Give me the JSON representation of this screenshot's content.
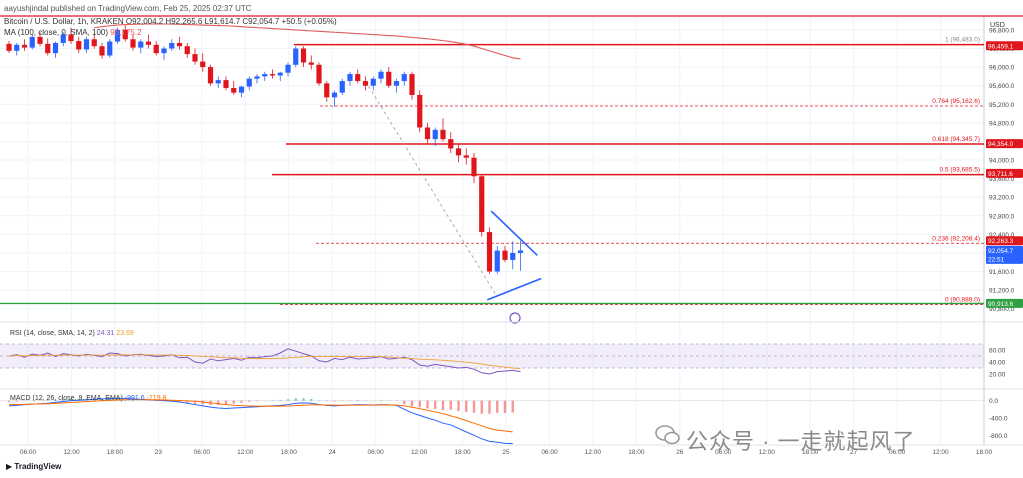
{
  "header": {
    "title": "aayushjindal published on TradingView.com, Feb 25, 2025 02:37 UTC",
    "symbol_line": "Bitcoin / U.S. Dollar, 1h, KRAKEN",
    "ohlc": "O92,004.2 H92,265.6 L91,614.7 C92,054.7 +50.5 (+0.05%)",
    "ma_label": "MA (100, close, 0, SMA, 100)",
    "ma_value": "96,175.2",
    "currency": "USD"
  },
  "rsi_label": {
    "text": "RSI (14, close, SMA, 14, 2)",
    "v1": "24.31",
    "v2": "23.69"
  },
  "macd_label": {
    "text": "MACD (12, 26, close, 9, EMA, EMA)",
    "v1": "-991.6",
    "v2": "-719.8"
  },
  "brand": "TradingView",
  "watermark": "公众号 · 一走就起风了",
  "colors": {
    "up": "#2962ff",
    "down": "#e0161d",
    "ma": "#e05a5a",
    "rsi": "#7e57c2",
    "fib": "#e0161d",
    "support": "#2ea043"
  },
  "chart_data": {
    "type": "candlestick",
    "ylim": [
      90600,
      97100
    ],
    "price_ticks": [
      "96,800.0",
      "96,400.0",
      "96,000.0",
      "95,600.0",
      "95,200.0",
      "94,800.0",
      "94,400.0",
      "94,000.0",
      "93,600.0",
      "93,200.0",
      "92,800.0",
      "92,400.0",
      "92,000.0",
      "91,600.0",
      "91,200.0",
      "90,800.0"
    ],
    "price_badges": [
      {
        "label": "96,459.1",
        "value": 96459.1,
        "color": "#e0161d"
      },
      {
        "label": "94,354.0",
        "value": 94354.0,
        "color": "#e0161d"
      },
      {
        "label": "93,711.6",
        "value": 93711.6,
        "color": "#e0161d"
      },
      {
        "label": "92,263.3",
        "value": 92263.3,
        "color": "#e0161d"
      },
      {
        "label": "92,054.7",
        "value": 92054.7,
        "color": "#2962ff",
        "sub": "22:51"
      },
      {
        "label": "90,913.6",
        "value": 90913.6,
        "color": "#2ea043"
      }
    ],
    "fib_levels": [
      {
        "label": "1 (96,483.0)",
        "value": 96483.0
      },
      {
        "label": "0.764 (95,162.6)",
        "value": 95162.6
      },
      {
        "label": "0.618 (94,345.7)",
        "value": 94345.7
      },
      {
        "label": "0.5 (93,685.5)",
        "value": 93685.5
      },
      {
        "label": "0.236 (92,208.4)",
        "value": 92208.4
      },
      {
        "label": "0 (90,888.0)",
        "value": 90888.0
      }
    ],
    "x_ticks": [
      "06:00",
      "12:00",
      "18:00",
      "23",
      "06:00",
      "12:00",
      "18:00",
      "24",
      "06:00",
      "12:00",
      "18:00",
      "25",
      "06:00",
      "12:00",
      "18:00",
      "26",
      "06:00",
      "12:00",
      "18:00",
      "27",
      "06:00",
      "12:00",
      "18:00"
    ],
    "candles": [
      [
        96500,
        96560,
        96300,
        96350
      ],
      [
        96350,
        96520,
        96250,
        96480
      ],
      [
        96480,
        96600,
        96350,
        96420
      ],
      [
        96420,
        96700,
        96380,
        96650
      ],
      [
        96650,
        96750,
        96450,
        96500
      ],
      [
        96500,
        96620,
        96250,
        96300
      ],
      [
        96300,
        96550,
        96200,
        96520
      ],
      [
        96520,
        96750,
        96450,
        96700
      ],
      [
        96700,
        96850,
        96500,
        96560
      ],
      [
        96560,
        96650,
        96300,
        96380
      ],
      [
        96380,
        96650,
        96300,
        96600
      ],
      [
        96600,
        96700,
        96400,
        96450
      ],
      [
        96450,
        96520,
        96180,
        96250
      ],
      [
        96250,
        96600,
        96200,
        96550
      ],
      [
        96550,
        96850,
        96500,
        96800
      ],
      [
        96800,
        96900,
        96550,
        96600
      ],
      [
        96600,
        96700,
        96350,
        96420
      ],
      [
        96420,
        96600,
        96300,
        96550
      ],
      [
        96550,
        96700,
        96400,
        96480
      ],
      [
        96480,
        96560,
        96250,
        96300
      ],
      [
        96300,
        96450,
        96150,
        96400
      ],
      [
        96400,
        96600,
        96350,
        96520
      ],
      [
        96520,
        96650,
        96380,
        96450
      ],
      [
        96450,
        96520,
        96200,
        96280
      ],
      [
        96280,
        96400,
        96050,
        96120
      ],
      [
        96120,
        96300,
        95900,
        96000
      ],
      [
        96000,
        96050,
        95600,
        95650
      ],
      [
        95650,
        95800,
        95550,
        95720
      ],
      [
        95720,
        95800,
        95500,
        95550
      ],
      [
        95550,
        95700,
        95400,
        95450
      ],
      [
        95450,
        95600,
        95350,
        95580
      ],
      [
        95580,
        95800,
        95500,
        95750
      ],
      [
        95750,
        95850,
        95650,
        95800
      ],
      [
        95800,
        95900,
        95700,
        95850
      ],
      [
        95850,
        95950,
        95750,
        95820
      ],
      [
        95820,
        95900,
        95700,
        95880
      ],
      [
        95880,
        96100,
        95800,
        96050
      ],
      [
        96050,
        96450,
        96000,
        96400
      ],
      [
        96400,
        96450,
        96000,
        96100
      ],
      [
        96100,
        96250,
        95950,
        96050
      ],
      [
        96050,
        96100,
        95600,
        95650
      ],
      [
        95650,
        95700,
        95250,
        95350
      ],
      [
        95350,
        95500,
        95150,
        95450
      ],
      [
        95450,
        95750,
        95400,
        95700
      ],
      [
        95700,
        95900,
        95600,
        95850
      ],
      [
        95850,
        95950,
        95650,
        95700
      ],
      [
        95700,
        95800,
        95500,
        95600
      ],
      [
        95600,
        95800,
        95500,
        95750
      ],
      [
        95750,
        95950,
        95650,
        95900
      ],
      [
        95900,
        96000,
        95550,
        95600
      ],
      [
        95600,
        95750,
        95450,
        95700
      ],
      [
        95700,
        95900,
        95600,
        95850
      ],
      [
        95850,
        95900,
        95300,
        95400
      ],
      [
        95400,
        95500,
        94600,
        94700
      ],
      [
        94700,
        94800,
        94350,
        94450
      ],
      [
        94450,
        94700,
        94300,
        94650
      ],
      [
        94650,
        94900,
        94400,
        94450
      ],
      [
        94450,
        94600,
        94150,
        94250
      ],
      [
        94250,
        94350,
        93950,
        94100
      ],
      [
        94100,
        94250,
        93900,
        94050
      ],
      [
        94050,
        94150,
        93500,
        93650
      ],
      [
        93650,
        93700,
        92350,
        92450
      ],
      [
        92450,
        92550,
        91550,
        91600
      ],
      [
        91600,
        92150,
        91550,
        92050
      ],
      [
        92050,
        92150,
        91800,
        91850
      ],
      [
        91850,
        92250,
        91650,
        92000
      ],
      [
        92000,
        92265,
        91614,
        92054
      ]
    ],
    "ma100": [
      96850,
      96870,
      96890,
      96905,
      96915,
      96920,
      96925,
      96928,
      96930,
      96928,
      96925,
      96920,
      96915,
      96910,
      96905,
      96900,
      96895,
      96890,
      96880,
      96870,
      96860,
      96850,
      96840,
      96830,
      96820,
      96810,
      96800,
      96790,
      96780,
      96770,
      96760,
      96750,
      96740,
      96730,
      96720,
      96710,
      96700,
      96690,
      96680,
      96670,
      96655,
      96640,
      96625,
      96610,
      96590,
      96570,
      96550,
      96520,
      96490,
      96450,
      96400,
      96350,
      96300,
      96250,
      96200,
      96175
    ],
    "rsi": {
      "ylim": [
        0,
        100
      ],
      "ticks": [
        60,
        40,
        20
      ],
      "band": [
        30,
        70
      ],
      "values": [
        50,
        52,
        48,
        53,
        51,
        55,
        49,
        54,
        52,
        50,
        53,
        51,
        49,
        55,
        54,
        50,
        52,
        53,
        51,
        49,
        50,
        52,
        47,
        48,
        40,
        38,
        45,
        42,
        44,
        46,
        43,
        48,
        47,
        49,
        50,
        55,
        62,
        58,
        54,
        50,
        42,
        40,
        46,
        44,
        48,
        45,
        46,
        47,
        49,
        45,
        46,
        48,
        44,
        35,
        33,
        36,
        34,
        32,
        30,
        31,
        28,
        22,
        20,
        24,
        25,
        26,
        24
      ]
    },
    "macd": {
      "ylim": [
        -1000,
        200
      ],
      "ticks": [
        "0.0",
        "-400.0",
        "-800.0"
      ],
      "tick_values": [
        0,
        -400,
        -800
      ],
      "macd_line": [
        -120,
        -110,
        -90,
        -80,
        -70,
        -60,
        -40,
        -20,
        0,
        10,
        20,
        30,
        40,
        50,
        60,
        50,
        40,
        30,
        20,
        10,
        0,
        -10,
        -30,
        -60,
        -90,
        -120,
        -150,
        -170,
        -180,
        -170,
        -160,
        -150,
        -140,
        -130,
        -120,
        -110,
        -90,
        -60,
        -50,
        -60,
        -90,
        -110,
        -120,
        -110,
        -100,
        -90,
        -95,
        -100,
        -90,
        -95,
        -110,
        -200,
        -280,
        -340,
        -400,
        -450,
        -520,
        -560,
        -640,
        -720,
        -800,
        -880,
        -940,
        -960,
        -985,
        -991
      ],
      "signal_line": [
        -90,
        -88,
        -85,
        -80,
        -75,
        -70,
        -62,
        -52,
        -42,
        -32,
        -22,
        -12,
        -2,
        8,
        16,
        22,
        24,
        24,
        22,
        18,
        14,
        10,
        4,
        -4,
        -14,
        -30,
        -50,
        -70,
        -90,
        -105,
        -115,
        -122,
        -126,
        -128,
        -128,
        -126,
        -122,
        -115,
        -105,
        -98,
        -97,
        -100,
        -104,
        -106,
        -106,
        -104,
        -103,
        -102,
        -100,
        -100,
        -102,
        -120,
        -150,
        -185,
        -220,
        -260,
        -300,
        -350,
        -400,
        -460,
        -520,
        -580,
        -640,
        -680,
        -700,
        -719
      ]
    }
  }
}
